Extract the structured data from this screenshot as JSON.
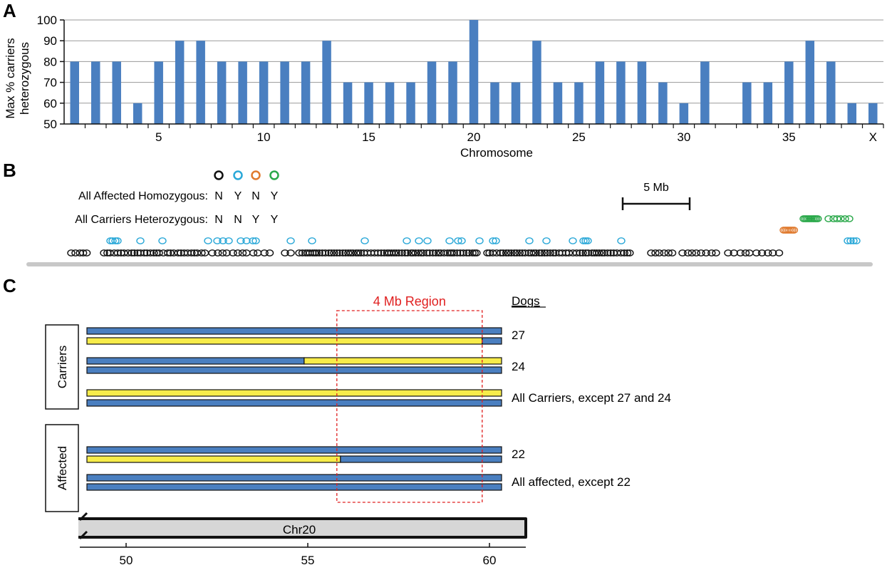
{
  "panels": {
    "a": "A",
    "b": "B",
    "c": "C"
  },
  "chart_data": [
    {
      "type": "bar",
      "xlabel": "Chromosome",
      "ylabel_lines": [
        "Max % carriers",
        "heterozygous"
      ],
      "ylim": [
        50,
        100
      ],
      "yticks": [
        50,
        60,
        70,
        80,
        90,
        100
      ],
      "grid": true,
      "bar_color": "#4a7fc0",
      "categories": [
        "1",
        "2",
        "3",
        "4",
        "5",
        "6",
        "7",
        "8",
        "9",
        "10",
        "11",
        "12",
        "13",
        "14",
        "15",
        "16",
        "17",
        "18",
        "19",
        "20",
        "21",
        "22",
        "23",
        "24",
        "25",
        "26",
        "27",
        "28",
        "29",
        "30",
        "31",
        "32",
        "33",
        "34",
        "35",
        "36",
        "37",
        "38",
        "X"
      ],
      "values": [
        80,
        80,
        80,
        60,
        80,
        90,
        90,
        80,
        80,
        80,
        80,
        80,
        90,
        70,
        70,
        70,
        70,
        80,
        80,
        100,
        70,
        70,
        90,
        70,
        70,
        80,
        80,
        80,
        70,
        60,
        80,
        50,
        70,
        70,
        80,
        90,
        80,
        60,
        60
      ],
      "xtick_labels": [
        "5",
        "10",
        "15",
        "20",
        "25",
        "30",
        "35",
        "X"
      ]
    },
    {
      "type": "scatter",
      "legend_header_colors": [
        "#111111",
        "#2aa8d8",
        "#e07a2e",
        "#2aa84a"
      ],
      "legend_rows": [
        {
          "label": "All Affected Homozygous:",
          "values": [
            "N",
            "Y",
            "N",
            "Y"
          ]
        },
        {
          "label": "All Carriers Heterozygous:",
          "values": [
            "N",
            "N",
            "Y",
            "Y"
          ]
        }
      ],
      "scale_bar_label": "5 Mb"
    },
    {
      "type": "diagram",
      "region_label": "4 Mb Region",
      "dogs_header": "Dogs",
      "group_labels": [
        "Carriers",
        "Affected"
      ],
      "dog_labels": [
        "27",
        "24",
        "All Carriers, except 27 and 24",
        "22",
        "All affected, except 22"
      ],
      "chromosome_label": "Chr20",
      "axis_ticks": [
        50,
        55,
        60
      ],
      "colors": {
        "blue": "#4a7fc0",
        "yellow": "#f7ec4a",
        "region": "#e02020"
      },
      "haplotypes": [
        {
          "start": 48.6,
          "end": 60.3,
          "color": "blue"
        },
        {
          "start": 48.6,
          "end": 59.8,
          "color": "yellow",
          "tail": "blue"
        },
        {
          "start": 48.6,
          "end": 54.9,
          "color": "blue",
          "tail": "yellow"
        },
        {
          "start": 48.6,
          "end": 60.3,
          "color": "blue"
        },
        {
          "start": 48.6,
          "end": 60.3,
          "color": "yellow"
        },
        {
          "start": 48.6,
          "end": 60.3,
          "color": "blue"
        },
        {
          "start": 48.6,
          "end": 60.3,
          "color": "blue"
        },
        {
          "start": 48.6,
          "end": 55.9,
          "color": "yellow",
          "tail": "blue"
        },
        {
          "start": 48.6,
          "end": 60.3,
          "color": "blue"
        },
        {
          "start": 48.6,
          "end": 60.3,
          "color": "blue"
        }
      ],
      "region_mb": [
        55.8,
        59.8
      ]
    }
  ]
}
